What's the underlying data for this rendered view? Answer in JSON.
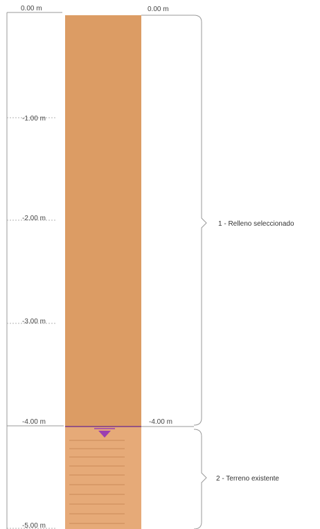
{
  "depth_axis": {
    "ticks": [
      "0.00 m",
      "-1.00 m",
      "-2.00 m",
      "-3.00 m",
      "-4.00 m",
      "-5.00 m"
    ]
  },
  "boundaries": {
    "top": "0.00 m",
    "interface": "-4.00 m"
  },
  "layers": [
    {
      "label": "1 - Relleno seleccionado",
      "color": "#dc9c64"
    },
    {
      "label": "2 - Terreno existente",
      "color": "#e6aa78",
      "hatch_color": "#c98a58"
    }
  ],
  "water_table_color": "#9b3fb0"
}
